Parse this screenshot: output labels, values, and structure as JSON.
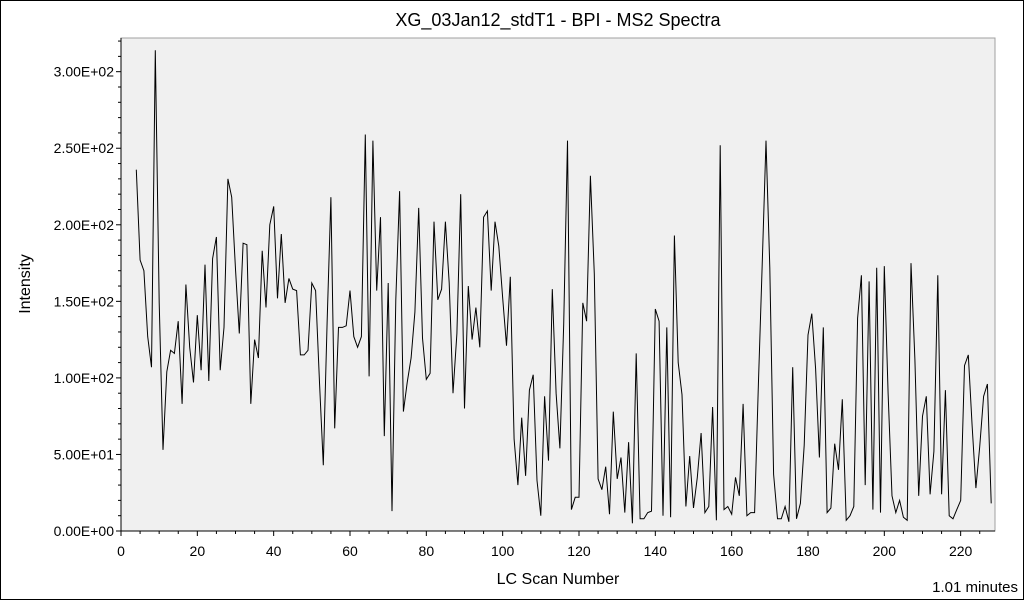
{
  "chart_data": {
    "type": "line",
    "title": "XG_03Jan12_stdT1 - BPI - MS2 Spectra",
    "xlabel": "LC Scan Number",
    "ylabel": "Intensity",
    "xlim": [
      0,
      229
    ],
    "ylim": [
      0,
      322
    ],
    "x_ticks": [
      0,
      20,
      40,
      60,
      80,
      100,
      120,
      140,
      160,
      180,
      200,
      220
    ],
    "y_ticks": [
      0,
      50,
      100,
      150,
      200,
      250,
      300
    ],
    "y_tick_labels": [
      "0.00E+00",
      "5.00E+01",
      "1.00E+02",
      "1.50E+02",
      "2.00E+02",
      "2.50E+02",
      "3.00E+02"
    ],
    "grid": false,
    "line_color": "#000000",
    "plot_background": "#f0f0f0",
    "series": [
      {
        "x": [
          4,
          5,
          6,
          7,
          8,
          9,
          10,
          11,
          12,
          13,
          14,
          15,
          16,
          17,
          18,
          19,
          20,
          21,
          22,
          23,
          24,
          25,
          26,
          27,
          28,
          29,
          30,
          31,
          32,
          33,
          34,
          35,
          36,
          37,
          38,
          39,
          40,
          41,
          42,
          43,
          44,
          45,
          46,
          47,
          48,
          49,
          50,
          51,
          52,
          53,
          54,
          55,
          56,
          57,
          58,
          59,
          60,
          61,
          62,
          63,
          64,
          65,
          66,
          67,
          68,
          69,
          70,
          71,
          72,
          73,
          74,
          75,
          76,
          77,
          78,
          79,
          80,
          81,
          82,
          83,
          84,
          85,
          86,
          87,
          88,
          89,
          90,
          91,
          92,
          93,
          94,
          95,
          96,
          97,
          98,
          99,
          100,
          101,
          102,
          103,
          104,
          105,
          106,
          107,
          108,
          109,
          110,
          111,
          112,
          113,
          114,
          115,
          116,
          117,
          118,
          119,
          120,
          121,
          122,
          123,
          124,
          125,
          126,
          127,
          128,
          129,
          130,
          131,
          132,
          133,
          134,
          135,
          136,
          137,
          138,
          139,
          140,
          141,
          142,
          143,
          144,
          145,
          146,
          147,
          148,
          149,
          150,
          151,
          152,
          153,
          154,
          155,
          156,
          157,
          158,
          159,
          160,
          161,
          162,
          163,
          164,
          165,
          166,
          167,
          168,
          169,
          170,
          171,
          172,
          173,
          174,
          175,
          176,
          177,
          178,
          179,
          180,
          181,
          182,
          183,
          184,
          185,
          186,
          187,
          188,
          189,
          190,
          191,
          192,
          193,
          194,
          195,
          196,
          197,
          198,
          199,
          200,
          201,
          202,
          203,
          204,
          205,
          206,
          207,
          208,
          209,
          210,
          211,
          212,
          213,
          214,
          215,
          216,
          217,
          218,
          219,
          220,
          221,
          222,
          223,
          224,
          225,
          226,
          227,
          228
        ],
        "values": [
          236,
          177,
          170,
          127,
          107,
          314,
          149,
          53,
          104,
          118,
          116,
          137,
          83,
          161,
          120,
          97,
          141,
          105,
          174,
          98,
          178,
          192,
          105,
          133,
          230,
          218,
          171,
          129,
          188,
          187,
          83,
          125,
          113,
          183,
          146,
          200,
          212,
          152,
          194,
          149,
          165,
          158,
          157,
          115,
          115,
          118,
          162,
          157,
          97,
          43,
          136,
          218,
          67,
          133,
          133,
          134,
          157,
          127,
          120,
          127,
          259,
          101,
          255,
          157,
          205,
          62,
          162,
          13,
          151,
          222,
          78,
          97,
          113,
          143,
          211,
          126,
          99,
          103,
          202,
          151,
          158,
          202,
          162,
          90,
          129,
          220,
          80,
          160,
          125,
          146,
          120,
          205,
          209,
          157,
          202,
          186,
          152,
          121,
          166,
          60,
          30,
          74,
          36,
          92,
          102,
          33,
          10,
          88,
          46,
          158,
          90,
          54,
          135,
          255,
          14,
          22,
          22,
          149,
          137,
          232,
          168,
          34,
          27,
          42,
          11,
          78,
          34,
          48,
          12,
          58,
          5,
          116,
          8,
          8,
          12,
          13,
          145,
          137,
          10,
          133,
          9,
          193,
          110,
          89,
          16,
          49,
          15,
          35,
          64,
          12,
          16,
          81,
          7,
          252,
          14,
          16,
          11,
          35,
          23,
          83,
          10,
          12,
          12,
          96,
          174,
          255,
          172,
          37,
          8,
          8,
          16,
          6,
          107,
          8,
          18,
          56,
          128,
          142,
          106,
          48,
          133,
          12,
          15,
          57,
          40,
          86,
          7,
          10,
          16,
          139,
          167,
          30,
          163,
          14,
          172,
          12,
          173,
          90,
          23,
          12,
          20,
          9,
          7,
          175,
          112,
          23,
          75,
          88,
          24,
          52,
          167,
          24,
          92,
          10,
          8,
          14,
          20,
          108,
          115,
          69,
          28,
          55,
          88,
          96,
          18
        ]
      }
    ],
    "footer_text": "1.01 minutes"
  }
}
